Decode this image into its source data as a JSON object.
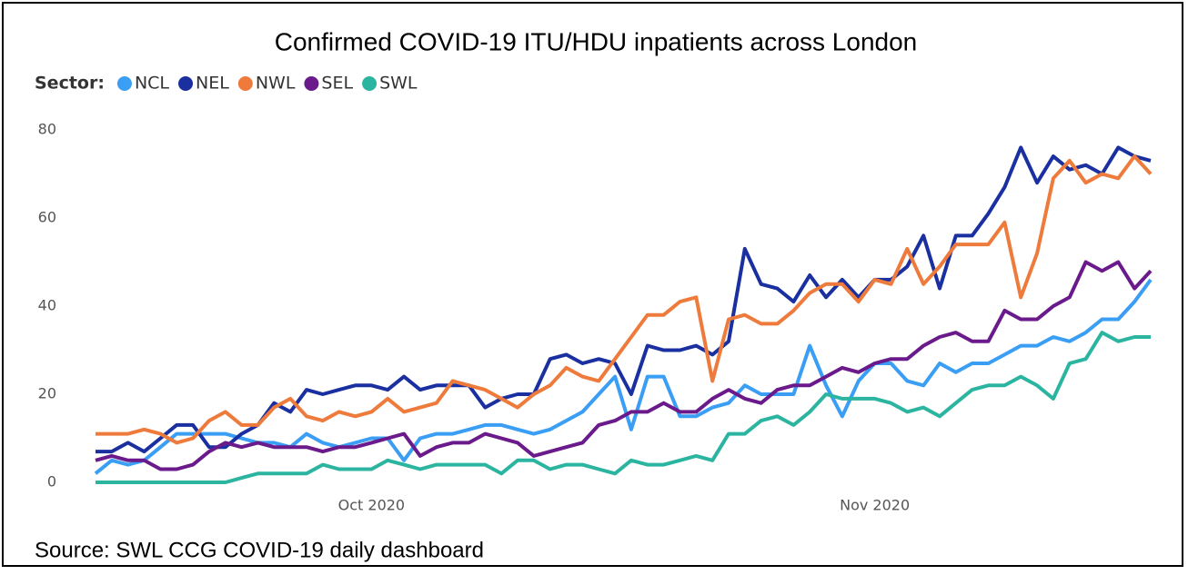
{
  "chart_data": {
    "type": "line",
    "title": "Confirmed COVID-19 ITU/HDU inpatients across London",
    "legend_title": "Sector:",
    "source": "Source: SWL CCG COVID-19 daily dashboard",
    "categories": [
      null,
      null,
      null,
      null,
      null,
      null,
      null,
      null,
      null,
      null,
      null,
      null,
      null,
      null,
      null,
      null,
      null,
      "Oct 2020",
      null,
      null,
      null,
      null,
      null,
      null,
      null,
      null,
      null,
      null,
      null,
      null,
      null,
      null,
      null,
      null,
      null,
      null,
      null,
      null,
      null,
      null,
      null,
      null,
      null,
      null,
      null,
      null,
      null,
      null,
      "Nov 2020",
      null,
      null,
      null,
      null,
      null,
      null,
      null,
      null,
      null,
      null,
      null,
      null,
      null,
      null,
      null,
      null,
      null
    ],
    "ylim": [
      0,
      80
    ],
    "yticks": [
      0,
      20,
      40,
      60,
      80
    ],
    "grid": false,
    "series": [
      {
        "name": "NCL",
        "color": "#3a9ef5",
        "values": [
          2,
          5,
          4,
          5,
          8,
          11,
          11,
          11,
          11,
          10,
          9,
          9,
          8,
          11,
          9,
          8,
          9,
          10,
          10,
          5,
          10,
          11,
          11,
          12,
          13,
          13,
          12,
          11,
          12,
          14,
          16,
          20,
          24,
          12,
          24,
          24,
          15,
          15,
          17,
          18,
          22,
          20,
          20,
          20,
          31,
          22,
          15,
          23,
          27,
          27,
          23,
          22,
          27,
          25,
          27,
          27,
          29,
          31,
          31,
          33,
          32,
          34,
          37,
          37,
          41,
          46
        ]
      },
      {
        "name": "NEL",
        "color": "#1a2fa0",
        "values": [
          7,
          7,
          9,
          7,
          10,
          13,
          13,
          8,
          8,
          11,
          13,
          18,
          16,
          21,
          20,
          21,
          22,
          22,
          21,
          24,
          21,
          22,
          22,
          22,
          17,
          19,
          20,
          20,
          28,
          29,
          27,
          28,
          27,
          20,
          31,
          30,
          30,
          31,
          29,
          32,
          53,
          45,
          44,
          41,
          47,
          42,
          46,
          42,
          46,
          46,
          49,
          56,
          44,
          56,
          56,
          61,
          67,
          76,
          68,
          74,
          71,
          72,
          70,
          76,
          74,
          73
        ]
      },
      {
        "name": "NWL",
        "color": "#ee7b3c",
        "values": [
          11,
          11,
          11,
          12,
          11,
          9,
          10,
          14,
          16,
          13,
          13,
          17,
          19,
          15,
          14,
          16,
          15,
          16,
          19,
          16,
          17,
          18,
          23,
          22,
          21,
          19,
          17,
          20,
          22,
          26,
          24,
          23,
          28,
          33,
          38,
          38,
          41,
          42,
          23,
          37,
          38,
          36,
          36,
          39,
          43,
          45,
          45,
          41,
          46,
          45,
          53,
          45,
          49,
          54,
          54,
          54,
          59,
          42,
          52,
          69,
          73,
          68,
          70,
          69,
          74,
          70
        ]
      },
      {
        "name": "SEL",
        "color": "#6a1a8a",
        "values": [
          5,
          6,
          5,
          5,
          3,
          3,
          4,
          7,
          9,
          8,
          9,
          8,
          8,
          8,
          7,
          8,
          8,
          9,
          10,
          11,
          6,
          8,
          9,
          9,
          11,
          10,
          9,
          6,
          7,
          8,
          9,
          13,
          14,
          16,
          16,
          18,
          16,
          16,
          19,
          21,
          19,
          18,
          21,
          22,
          22,
          24,
          26,
          25,
          27,
          28,
          28,
          31,
          33,
          34,
          32,
          32,
          39,
          37,
          37,
          40,
          42,
          50,
          48,
          50,
          44,
          48
        ]
      },
      {
        "name": "SWL",
        "color": "#2bb5a0",
        "values": [
          0,
          0,
          0,
          0,
          0,
          0,
          0,
          0,
          0,
          1,
          2,
          2,
          2,
          2,
          4,
          3,
          3,
          3,
          5,
          4,
          3,
          4,
          4,
          4,
          4,
          2,
          5,
          5,
          3,
          4,
          4,
          3,
          2,
          5,
          4,
          4,
          5,
          6,
          5,
          11,
          11,
          14,
          15,
          13,
          16,
          20,
          19,
          19,
          19,
          18,
          16,
          17,
          15,
          18,
          21,
          22,
          22,
          24,
          22,
          19,
          27,
          28,
          34,
          32,
          33,
          33
        ]
      }
    ]
  }
}
